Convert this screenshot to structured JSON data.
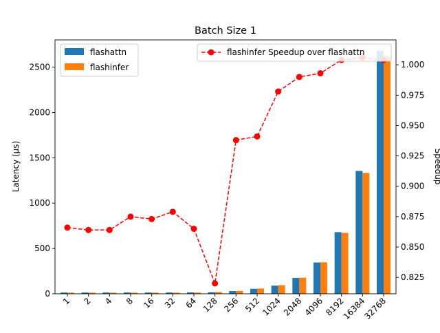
{
  "chart_data": {
    "type": "bar",
    "title": "Batch Size 1",
    "xlabel": "",
    "ylabel": "Latency (µs)",
    "y2label": "Speedup",
    "categories": [
      "1",
      "2",
      "4",
      "8",
      "16",
      "32",
      "64",
      "128",
      "256",
      "512",
      "1024",
      "2048",
      "4096",
      "8192",
      "16384",
      "32768"
    ],
    "ylim": [
      0,
      2800
    ],
    "yticks": [
      0,
      500,
      1000,
      1500,
      2000,
      2500
    ],
    "y2lim": [
      0.8115,
      1.0205
    ],
    "y2ticks": [
      0.825,
      0.85,
      0.875,
      0.9,
      0.925,
      0.95,
      0.975,
      1.0
    ],
    "y2tick_labels": [
      "0.825",
      "0.850",
      "0.875",
      "0.900",
      "0.925",
      "0.950",
      "0.975",
      "1.000"
    ],
    "series": [
      {
        "name": "flashattn",
        "color": "#1f77b4",
        "values": [
          14,
          14,
          14,
          14,
          14,
          14,
          15,
          17,
          30,
          55,
          90,
          175,
          345,
          680,
          1355,
          2680
        ]
      },
      {
        "name": "flashinfer",
        "color": "#ff7f0e",
        "values": [
          12,
          12,
          12,
          12,
          12,
          12,
          13,
          20,
          32,
          58,
          95,
          178,
          347,
          672,
          1333,
          2622
        ]
      }
    ],
    "line_series": {
      "name": "flashinfer Speedup over flashattn",
      "color": "#ff0000",
      "values": [
        0.866,
        0.864,
        0.864,
        0.875,
        0.873,
        0.879,
        0.865,
        0.82,
        0.938,
        0.941,
        0.978,
        0.99,
        0.993,
        1.004,
        1.006,
        1.004
      ]
    },
    "legend_left": [
      "flashattn",
      "flashinfer"
    ],
    "legend_right": [
      "flashinfer Speedup over flashattn"
    ],
    "legend_left_placement": "upper-left",
    "legend_right_placement": "upper-right",
    "grid": false
  }
}
